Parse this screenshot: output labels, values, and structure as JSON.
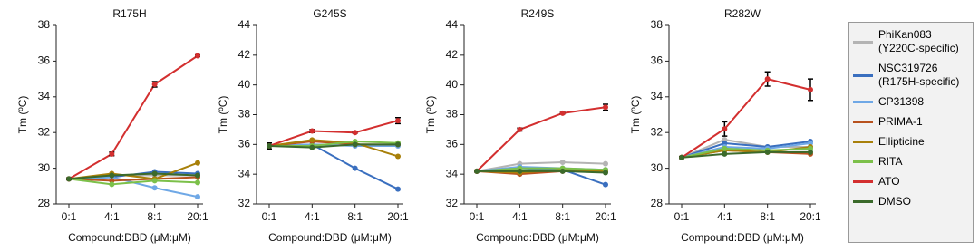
{
  "chart_data": [
    {
      "type": "line",
      "title": "R175H",
      "xlabel": "Compound:DBD (μM:μM)",
      "ylabel": "Tm (ºC)",
      "categories": [
        "0:1",
        "4:1",
        "8:1",
        "20:1"
      ],
      "ylim": [
        28,
        38
      ],
      "yticks": [
        28,
        30,
        32,
        34,
        36,
        38
      ],
      "series": [
        {
          "values": [
            29.4,
            29.6,
            29.6,
            29.6
          ]
        },
        {
          "values": [
            29.4,
            29.5,
            29.8,
            29.7
          ]
        },
        {
          "values": [
            29.4,
            29.5,
            28.9,
            28.4
          ]
        },
        {
          "values": [
            29.4,
            29.3,
            29.4,
            29.5
          ]
        },
        {
          "values": [
            29.4,
            29.7,
            29.4,
            30.3
          ]
        },
        {
          "values": [
            29.4,
            29.1,
            29.3,
            29.2
          ]
        },
        {
          "values": [
            29.4,
            30.8,
            34.7,
            36.3
          ],
          "errors": [
            0.05,
            0.1,
            0.15,
            0.05
          ]
        },
        {
          "values": [
            29.4,
            29.6,
            29.7,
            29.6
          ]
        }
      ]
    },
    {
      "type": "line",
      "title": "G245S",
      "xlabel": "Compound:DBD (μM:μM)",
      "ylabel": "Tm (ºC)",
      "categories": [
        "0:1",
        "4:1",
        "8:1",
        "20:1"
      ],
      "ylim": [
        32,
        44
      ],
      "yticks": [
        32,
        34,
        36,
        38,
        40,
        42,
        44
      ],
      "series": [
        {
          "values": [
            35.9,
            36.0,
            36.0,
            36.0
          ]
        },
        {
          "values": [
            35.9,
            36.0,
            34.4,
            33.0
          ]
        },
        {
          "values": [
            35.9,
            36.0,
            35.9,
            35.9
          ]
        },
        {
          "values": [
            35.9,
            36.2,
            36.0,
            36.0
          ]
        },
        {
          "values": [
            35.9,
            36.3,
            36.1,
            35.2
          ]
        },
        {
          "values": [
            35.9,
            35.9,
            36.2,
            36.1
          ]
        },
        {
          "values": [
            35.9,
            36.9,
            36.8,
            37.6
          ],
          "errors": [
            0.2,
            0.1,
            0.05,
            0.2
          ]
        },
        {
          "values": [
            35.9,
            35.8,
            36.0,
            36.0
          ]
        }
      ]
    },
    {
      "type": "line",
      "title": "R249S",
      "xlabel": "Compound:DBD (μM:μM)",
      "ylabel": "Tm (ºC)",
      "categories": [
        "0:1",
        "4:1",
        "8:1",
        "20:1"
      ],
      "ylim": [
        32,
        44
      ],
      "yticks": [
        32,
        34,
        36,
        38,
        40,
        42,
        44
      ],
      "series": [
        {
          "values": [
            34.2,
            34.7,
            34.8,
            34.7
          ]
        },
        {
          "values": [
            34.2,
            34.4,
            34.3,
            33.3
          ]
        },
        {
          "values": [
            34.2,
            34.5,
            34.4,
            34.3
          ]
        },
        {
          "values": [
            34.2,
            34.0,
            34.2,
            34.2
          ]
        },
        {
          "values": [
            34.2,
            34.1,
            34.3,
            34.2
          ]
        },
        {
          "values": [
            34.2,
            34.4,
            34.4,
            34.3
          ]
        },
        {
          "values": [
            34.2,
            37.0,
            38.1,
            38.5
          ],
          "errors": [
            0.05,
            0.1,
            0.05,
            0.2
          ]
        },
        {
          "values": [
            34.2,
            34.2,
            34.2,
            34.1
          ]
        }
      ]
    },
    {
      "type": "line",
      "title": "R282W",
      "xlabel": "Compound:DBD (μM:μM)",
      "ylabel": "Tm (ºC)",
      "categories": [
        "0:1",
        "4:1",
        "8:1",
        "20:1"
      ],
      "ylim": [
        28,
        38
      ],
      "yticks": [
        28,
        30,
        32,
        34,
        36,
        38
      ],
      "series": [
        {
          "values": [
            30.6,
            31.6,
            31.2,
            31.2
          ]
        },
        {
          "values": [
            30.6,
            31.4,
            31.2,
            31.5
          ]
        },
        {
          "values": [
            30.6,
            31.2,
            31.1,
            31.4
          ]
        },
        {
          "values": [
            30.6,
            31.0,
            30.9,
            30.8
          ]
        },
        {
          "values": [
            30.6,
            31.0,
            30.9,
            31.2
          ]
        },
        {
          "values": [
            30.6,
            31.1,
            31.0,
            31.1
          ]
        },
        {
          "values": [
            30.6,
            32.2,
            35.0,
            34.4
          ],
          "errors": [
            0.05,
            0.4,
            0.4,
            0.6
          ]
        },
        {
          "values": [
            30.6,
            30.8,
            30.9,
            30.9
          ]
        }
      ]
    }
  ],
  "legend": {
    "position": "right",
    "items": [
      {
        "name": "PhiKan083\n(Y220C-specific)",
        "color": "#b4b4b4"
      },
      {
        "name": "NSC319726\n(R175H-specific)",
        "color": "#3a6fbf"
      },
      {
        "name": "CP31398",
        "color": "#6fa8e6"
      },
      {
        "name": "PRIMA-1",
        "color": "#b8521e"
      },
      {
        "name": "Ellipticine",
        "color": "#a8800a"
      },
      {
        "name": "RITA",
        "color": "#7cc04a"
      },
      {
        "name": "ATO",
        "color": "#d32f2f"
      },
      {
        "name": "DMSO",
        "color": "#3b6a2b"
      }
    ]
  }
}
